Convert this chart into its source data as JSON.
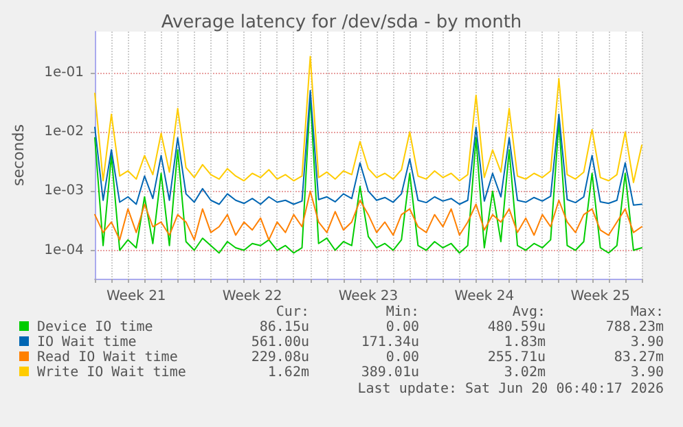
{
  "chart_data": {
    "type": "line",
    "title": "Average latency for /dev/sda - by month",
    "ylabel": "seconds",
    "categories": [
      null,
      null,
      null,
      null,
      null,
      "Week 21",
      null,
      null,
      null,
      null,
      null,
      null,
      null,
      null,
      null,
      null,
      null,
      null,
      null,
      "Week 22",
      null,
      null,
      null,
      null,
      null,
      null,
      null,
      null,
      null,
      null,
      null,
      null,
      null,
      "Week 23",
      null,
      null,
      null,
      null,
      null,
      null,
      null,
      null,
      null,
      null,
      null,
      null,
      null,
      "Week 24",
      null,
      null,
      null,
      null,
      null,
      null,
      null,
      null,
      null,
      null,
      null,
      null,
      null,
      "Week 25",
      null,
      null,
      null,
      null,
      null
    ],
    "ylim": [
      3.3e-05,
      0.5
    ],
    "yticks": [
      {
        "value": 0.0001,
        "label": "1e-04"
      },
      {
        "value": 0.001,
        "label": "1e-03"
      },
      {
        "value": 0.01,
        "label": "1e-02"
      },
      {
        "value": 0.1,
        "label": "1e-01"
      }
    ],
    "log": "y",
    "grid": true,
    "legend": "bottom",
    "marker": "none",
    "line_style": "solid",
    "series": [
      {
        "name": "Device IO time",
        "color": "#00cc00",
        "values": [
          0.008,
          0.00012,
          0.004,
          0.0001,
          0.00015,
          0.00011,
          0.0008,
          0.00013,
          0.002,
          0.00012,
          0.005,
          0.00014,
          0.0001,
          0.00016,
          0.00012,
          9e-05,
          0.00014,
          0.00011,
          0.0001,
          0.00013,
          0.00012,
          0.00015,
          0.0001,
          0.00012,
          9e-05,
          0.00011,
          0.04,
          0.00013,
          0.00016,
          0.0001,
          0.00014,
          0.00012,
          0.0012,
          0.00017,
          0.00011,
          0.00013,
          0.0001,
          0.00015,
          0.002,
          0.00012,
          0.0001,
          0.00014,
          0.00011,
          0.00013,
          9e-05,
          0.00012,
          0.008,
          0.00011,
          0.001,
          0.00014,
          0.005,
          0.00012,
          0.0001,
          0.00013,
          0.00011,
          0.00015,
          0.015,
          0.00012,
          0.0001,
          0.00014,
          0.002,
          0.00011,
          9e-05,
          0.00012,
          0.002,
          0.0001,
          0.00011
        ]
      },
      {
        "name": "IO Wait time",
        "color": "#0066b3",
        "values": [
          0.012,
          0.0007,
          0.005,
          0.00065,
          0.0008,
          0.0006,
          0.0018,
          0.00075,
          0.004,
          0.0007,
          0.008,
          0.0009,
          0.00065,
          0.0011,
          0.0007,
          0.0006,
          0.0009,
          0.0007,
          0.00062,
          0.00075,
          0.0006,
          0.0008,
          0.00065,
          0.0007,
          0.0006,
          0.00068,
          0.05,
          0.00072,
          0.0008,
          0.00066,
          0.0009,
          0.00075,
          0.003,
          0.001,
          0.0007,
          0.00078,
          0.00065,
          0.0009,
          0.0035,
          0.0007,
          0.00064,
          0.0008,
          0.00068,
          0.00075,
          0.0006,
          0.0007,
          0.012,
          0.00068,
          0.002,
          0.0008,
          0.008,
          0.0007,
          0.00065,
          0.00078,
          0.00068,
          0.00082,
          0.02,
          0.00072,
          0.00064,
          0.0008,
          0.004,
          0.00066,
          0.00062,
          0.0007,
          0.003,
          0.00058,
          0.0006
        ]
      },
      {
        "name": "Read IO Wait time",
        "color": "#ff8000",
        "values": [
          0.0004,
          0.0002,
          0.0003,
          0.00015,
          0.0005,
          0.0002,
          0.0006,
          0.00025,
          0.0003,
          0.00018,
          0.0004,
          0.0003,
          0.00015,
          0.0005,
          0.0002,
          0.00025,
          0.0004,
          0.00018,
          0.0003,
          0.00022,
          0.00035,
          0.00015,
          0.0003,
          0.0002,
          0.0004,
          0.00025,
          0.001,
          0.0003,
          0.0002,
          0.00045,
          0.00022,
          0.0003,
          0.0007,
          0.0004,
          0.0002,
          0.0003,
          0.00018,
          0.0004,
          0.0005,
          0.00025,
          0.0002,
          0.0004,
          0.00025,
          0.0005,
          0.00018,
          0.0003,
          0.0006,
          0.00022,
          0.0004,
          0.0003,
          0.0005,
          0.0002,
          0.00035,
          0.00018,
          0.0004,
          0.00025,
          0.0007,
          0.0003,
          0.0002,
          0.0004,
          0.0005,
          0.00022,
          0.00018,
          0.0003,
          0.0005,
          0.0002,
          0.00025
        ]
      },
      {
        "name": "Write IO Wait time",
        "color": "#ffcc00",
        "values": [
          0.045,
          0.0015,
          0.02,
          0.0018,
          0.0022,
          0.0016,
          0.004,
          0.0019,
          0.0095,
          0.0021,
          0.025,
          0.0025,
          0.0017,
          0.0028,
          0.0019,
          0.0016,
          0.0024,
          0.0018,
          0.0015,
          0.002,
          0.0017,
          0.0023,
          0.0016,
          0.0019,
          0.0015,
          0.0018,
          0.19,
          0.0017,
          0.0021,
          0.0016,
          0.0022,
          0.0019,
          0.0069,
          0.0024,
          0.0017,
          0.002,
          0.0016,
          0.0023,
          0.01,
          0.0018,
          0.0016,
          0.0022,
          0.0017,
          0.002,
          0.0015,
          0.0019,
          0.042,
          0.0017,
          0.005,
          0.0021,
          0.025,
          0.0018,
          0.0016,
          0.002,
          0.0017,
          0.0022,
          0.08,
          0.0019,
          0.0016,
          0.0021,
          0.011,
          0.0017,
          0.0015,
          0.0019,
          0.01,
          0.0014,
          0.006
        ]
      }
    ],
    "annotations": [
      "Cur:",
      "Min:",
      "Avg:",
      "Max:",
      "86.15u",
      "0.00",
      "480.59u",
      "788.23m",
      "561.00u",
      "171.34u",
      "1.83m",
      "3.90",
      "229.08u",
      "0.00",
      "255.71u",
      "83.27m",
      "1.62m",
      "389.01u",
      "3.02m",
      "3.90",
      "Last update: Sat Jun 20 06:40:17 2026"
    ]
  }
}
